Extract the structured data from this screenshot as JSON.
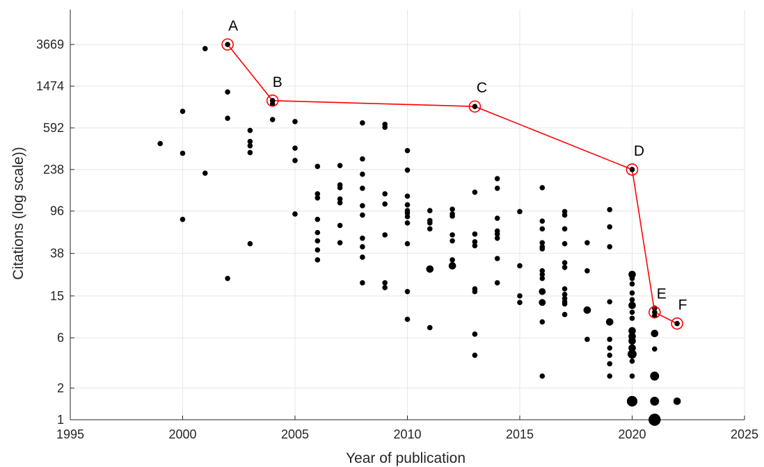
{
  "chart_data": {
    "type": "scatter",
    "title": "",
    "xlabel": "Year of publication",
    "ylabel": "Citations (log scale))",
    "xlim": [
      1995,
      2025
    ],
    "ylim": [
      1,
      3669
    ],
    "y_scale": "log",
    "grid": true,
    "x_ticks": [
      1995,
      2000,
      2005,
      2010,
      2015,
      2020,
      2025
    ],
    "y_ticks": [
      1,
      2,
      6,
      15,
      38,
      96,
      238,
      592,
      1474,
      3669
    ],
    "colors": {
      "points": "#000000",
      "highlight": "#ff0000",
      "grid": "#e6e6e6",
      "axis": "#262626"
    },
    "series": [
      {
        "points": [
          [
            1999,
            420,
            1
          ],
          [
            2000,
            850,
            1
          ],
          [
            2000,
            340,
            1
          ],
          [
            2000,
            80,
            1
          ],
          [
            2001,
            3350,
            1
          ],
          [
            2001,
            220,
            1
          ],
          [
            2002,
            3669,
            1
          ],
          [
            2002,
            1300,
            1
          ],
          [
            2002,
            730,
            1
          ],
          [
            2002,
            22,
            1
          ],
          [
            2003,
            560,
            1
          ],
          [
            2003,
            440,
            1
          ],
          [
            2003,
            400,
            1
          ],
          [
            2003,
            345,
            1
          ],
          [
            2003,
            47,
            1
          ],
          [
            2004,
            1074,
            1
          ],
          [
            2004,
            1000,
            1
          ],
          [
            2004,
            710,
            1
          ],
          [
            2005,
            680,
            1
          ],
          [
            2005,
            380,
            1
          ],
          [
            2005,
            290,
            1
          ],
          [
            2005,
            90,
            1
          ],
          [
            2006,
            255,
            1
          ],
          [
            2006,
            140,
            1
          ],
          [
            2006,
            128,
            1
          ],
          [
            2006,
            80,
            1
          ],
          [
            2006,
            60,
            1
          ],
          [
            2006,
            50,
            1
          ],
          [
            2006,
            41,
            1
          ],
          [
            2006,
            33,
            1
          ],
          [
            2007,
            260,
            1
          ],
          [
            2007,
            170,
            1
          ],
          [
            2007,
            160,
            1
          ],
          [
            2007,
            125,
            1
          ],
          [
            2007,
            115,
            1
          ],
          [
            2007,
            70,
            1
          ],
          [
            2007,
            48,
            1
          ],
          [
            2008,
            660,
            1
          ],
          [
            2008,
            300,
            1
          ],
          [
            2008,
            215,
            1
          ],
          [
            2008,
            158,
            1
          ],
          [
            2008,
            108,
            1
          ],
          [
            2008,
            88,
            1
          ],
          [
            2008,
            53,
            1
          ],
          [
            2008,
            44,
            1
          ],
          [
            2008,
            35,
            1
          ],
          [
            2008,
            20,
            1
          ],
          [
            2009,
            640,
            1
          ],
          [
            2009,
            600,
            1
          ],
          [
            2009,
            140,
            1
          ],
          [
            2009,
            112,
            1
          ],
          [
            2009,
            57,
            1
          ],
          [
            2009,
            20,
            1
          ],
          [
            2009,
            18,
            1
          ],
          [
            2010,
            360,
            1
          ],
          [
            2010,
            235,
            1
          ],
          [
            2010,
            133,
            1
          ],
          [
            2010,
            110,
            1
          ],
          [
            2010,
            97,
            1
          ],
          [
            2010,
            92,
            1
          ],
          [
            2010,
            85,
            1
          ],
          [
            2010,
            74,
            1
          ],
          [
            2010,
            47,
            1
          ],
          [
            2010,
            16.5,
            1
          ],
          [
            2010,
            9,
            1
          ],
          [
            2011,
            97,
            1
          ],
          [
            2011,
            78,
            1
          ],
          [
            2011,
            74,
            1
          ],
          [
            2011,
            65,
            1
          ],
          [
            2011,
            27,
            1.4
          ],
          [
            2011,
            7.5,
            1
          ],
          [
            2012,
            100,
            1
          ],
          [
            2012,
            90,
            1
          ],
          [
            2012,
            86,
            1
          ],
          [
            2012,
            57,
            1
          ],
          [
            2012,
            50,
            1
          ],
          [
            2012,
            33,
            1
          ],
          [
            2012,
            29,
            1.4
          ],
          [
            2013,
            945,
            1
          ],
          [
            2013,
            145,
            1
          ],
          [
            2013,
            58,
            1
          ],
          [
            2013,
            49,
            1
          ],
          [
            2013,
            45,
            1
          ],
          [
            2013,
            17.5,
            1
          ],
          [
            2013,
            16.5,
            1
          ],
          [
            2013,
            6.5,
            1
          ],
          [
            2013,
            4.1,
            1
          ],
          [
            2014,
            195,
            1
          ],
          [
            2014,
            158,
            1
          ],
          [
            2014,
            82,
            1
          ],
          [
            2014,
            62,
            1
          ],
          [
            2014,
            58,
            1
          ],
          [
            2014,
            53,
            1
          ],
          [
            2014,
            34,
            1
          ],
          [
            2014,
            20,
            1
          ],
          [
            2015,
            95,
            1
          ],
          [
            2015,
            29,
            1
          ],
          [
            2015,
            15,
            1
          ],
          [
            2015,
            13,
            1
          ],
          [
            2016,
            160,
            1
          ],
          [
            2016,
            77,
            1
          ],
          [
            2016,
            65,
            1
          ],
          [
            2016,
            48,
            1
          ],
          [
            2016,
            44,
            1
          ],
          [
            2016,
            42,
            1
          ],
          [
            2016,
            26,
            1
          ],
          [
            2016,
            24,
            1
          ],
          [
            2016,
            22,
            1
          ],
          [
            2016,
            16.5,
            1.3
          ],
          [
            2016,
            13,
            1.3
          ],
          [
            2016,
            8.5,
            1
          ],
          [
            2016,
            2.6,
            1
          ],
          [
            2017,
            95,
            1
          ],
          [
            2017,
            88,
            1
          ],
          [
            2017,
            65,
            1
          ],
          [
            2017,
            47,
            1
          ],
          [
            2017,
            31,
            1
          ],
          [
            2017,
            28,
            1
          ],
          [
            2017,
            17.5,
            1
          ],
          [
            2017,
            15.5,
            1
          ],
          [
            2017,
            14.2,
            1
          ],
          [
            2017,
            13.2,
            1
          ],
          [
            2017,
            12.6,
            1
          ],
          [
            2017,
            10,
            1
          ],
          [
            2018,
            48,
            1
          ],
          [
            2018,
            26,
            1
          ],
          [
            2018,
            11,
            1.4
          ],
          [
            2018,
            5.8,
            1
          ],
          [
            2019,
            99,
            1
          ],
          [
            2019,
            68,
            1
          ],
          [
            2019,
            44,
            1
          ],
          [
            2019,
            13.2,
            1
          ],
          [
            2019,
            8.5,
            1.4
          ],
          [
            2019,
            5.8,
            1
          ],
          [
            2019,
            4.8,
            1
          ],
          [
            2019,
            4.1,
            1
          ],
          [
            2019,
            3.4,
            1
          ],
          [
            2019,
            2.6,
            1
          ],
          [
            2020,
            238,
            1
          ],
          [
            2020,
            24,
            1.4
          ],
          [
            2020,
            22,
            1
          ],
          [
            2020,
            19.5,
            1
          ],
          [
            2020,
            16,
            1
          ],
          [
            2020,
            13.8,
            1
          ],
          [
            2020,
            12.2,
            1.4
          ],
          [
            2020,
            10.5,
            1
          ],
          [
            2020,
            9.2,
            1
          ],
          [
            2020,
            7,
            1.4
          ],
          [
            2020,
            6.2,
            1.4
          ],
          [
            2020,
            5.6,
            1.4
          ],
          [
            2020,
            4.8,
            1.4
          ],
          [
            2020,
            4.2,
            1.7
          ],
          [
            2020,
            3.6,
            1
          ],
          [
            2020,
            2.6,
            1
          ],
          [
            2020,
            1.5,
            2.0
          ],
          [
            2021,
            11.5,
            1
          ],
          [
            2021,
            10.5,
            1
          ],
          [
            2021,
            9.7,
            1
          ],
          [
            2021,
            6.6,
            1.4
          ],
          [
            2021,
            4.7,
            1
          ],
          [
            2021,
            2.6,
            1.7
          ],
          [
            2021,
            1.5,
            1.7
          ],
          [
            2021,
            1,
            2.3
          ],
          [
            2022,
            8.2,
            1
          ],
          [
            2022,
            1.5,
            1.4
          ]
        ]
      }
    ],
    "highlight_path": [
      {
        "label": "A",
        "x": 2002,
        "y": 3669
      },
      {
        "label": "B",
        "x": 2004,
        "y": 1074
      },
      {
        "label": "C",
        "x": 2013,
        "y": 945
      },
      {
        "label": "D",
        "x": 2020,
        "y": 238
      },
      {
        "label": "E",
        "x": 2021,
        "y": 10.5
      },
      {
        "label": "F",
        "x": 2022,
        "y": 8.2
      }
    ]
  }
}
